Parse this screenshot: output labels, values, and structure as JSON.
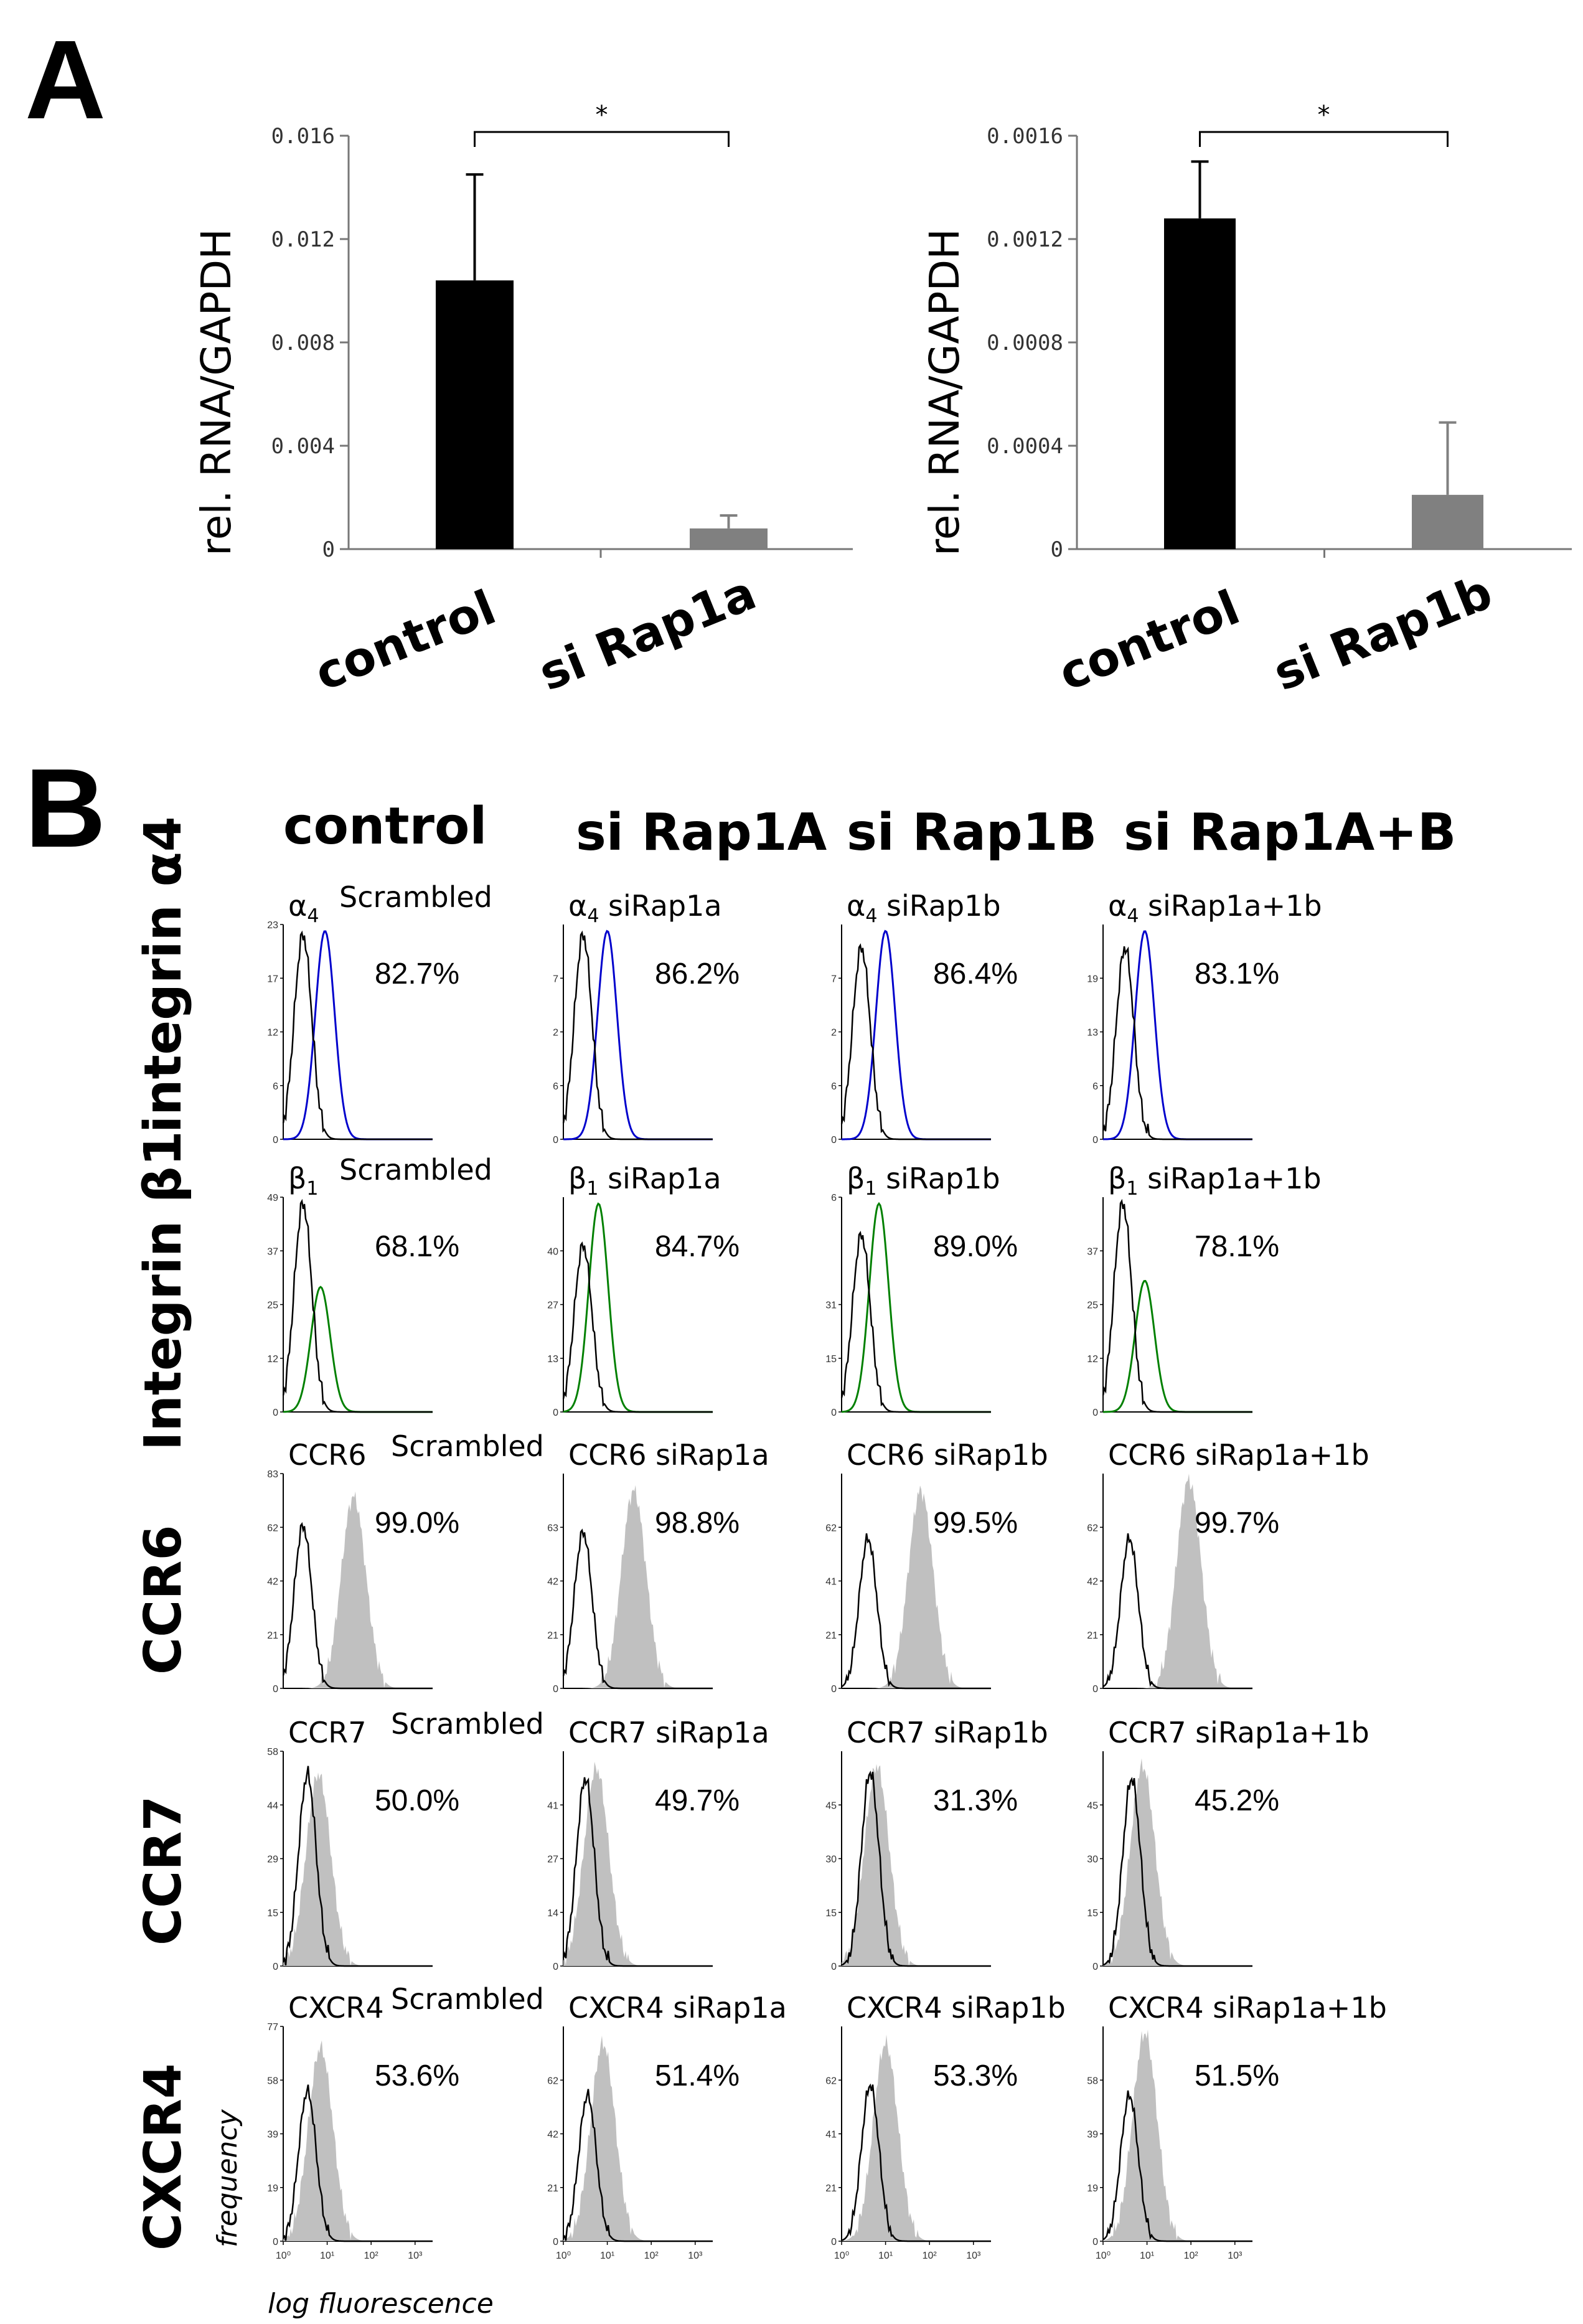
{
  "panel_a": {
    "letter": "A"
  },
  "panel_b": {
    "letter": "B",
    "column_headers": [
      "control",
      "si Rap1A",
      "si Rap1B",
      "si Rap1A+B"
    ],
    "row_headers": [
      "integrin α4",
      "Integrin β1",
      "CCR6",
      "CCR7",
      "CXCR4"
    ],
    "x_axis_label": "log fluorescence",
    "y_axis_label": "frequency"
  },
  "colors": {
    "control_bar": "#000000",
    "si_bar": "#808080",
    "alpha4_positive": "#0000cc",
    "beta1_positive": "#008000",
    "filled_histogram": "#c0c0c0",
    "isotype_line": "#000000"
  },
  "chart_data": [
    {
      "type": "bar",
      "panel": "A",
      "categories": [
        "control",
        "si Rap1a"
      ],
      "values": [
        0.0104,
        0.0008
      ],
      "errors": [
        0.0041,
        0.0005
      ],
      "ylabel": "rel. RNA/GAPDH",
      "ylim": [
        0,
        0.016
      ],
      "yticks": [
        "0",
        "0.004",
        "0.008",
        "0.012",
        "0.016"
      ],
      "significance": "*"
    },
    {
      "type": "bar",
      "panel": "A",
      "categories": [
        "control",
        "si Rap1b"
      ],
      "values": [
        0.00128,
        0.00021
      ],
      "errors": [
        0.00022,
        0.00028
      ],
      "ylabel": "rel. RNA/GAPDH",
      "ylim": [
        0,
        0.0016
      ],
      "yticks": [
        "0",
        "0.0004",
        "0.0008",
        "0.0012",
        "0.0016"
      ],
      "significance": "*"
    },
    {
      "type": "histogram-grid",
      "panel": "B",
      "x_ticks": [
        "10⁰",
        "10¹",
        "10²",
        "10³"
      ],
      "rows": [
        {
          "marker": "integrin α4",
          "style": "outline",
          "color": "#0000cc",
          "cells": [
            {
              "sym": "α",
              "sub": "4",
              "name": "",
              "condition": "Scrambled",
              "percent": "82.7%",
              "yticks": [
                "0",
                "6",
                "12",
                "17",
                "23"
              ],
              "iso_peak_log": 0.45,
              "pos_peak_log": 0.95,
              "pos_height": 1.0,
              "iso_height": 0.98
            },
            {
              "sym": "α",
              "sub": "4",
              "name": "",
              "condition": "siRap1a",
              "percent": "86.2%",
              "yticks": [
                "0",
                "6",
                "2",
                "7",
                ""
              ],
              "iso_peak_log": 0.45,
              "pos_peak_log": 1.0,
              "pos_height": 1.0,
              "iso_height": 0.98
            },
            {
              "sym": "α",
              "sub": "4",
              "name": "",
              "condition": "siRap1b",
              "percent": "86.4%",
              "yticks": [
                "0",
                "6",
                "2",
                "7",
                ""
              ],
              "iso_peak_log": 0.45,
              "pos_peak_log": 1.0,
              "pos_height": 1.0,
              "iso_height": 0.92
            },
            {
              "sym": "α",
              "sub": "4",
              "name": "",
              "condition": "siRap1a+1b",
              "percent": "83.1%",
              "yticks": [
                "0",
                "6",
                "13",
                "19",
                ""
              ],
              "iso_peak_log": 0.5,
              "pos_peak_log": 0.95,
              "pos_height": 1.0,
              "iso_height": 0.92
            }
          ]
        },
        {
          "marker": "Integrin β1",
          "style": "outline",
          "color": "#008000",
          "cells": [
            {
              "sym": "β",
              "sub": "1",
              "name": "",
              "condition": "Scrambled",
              "percent": "68.1%",
              "yticks": [
                "0",
                "12",
                "25",
                "37",
                "49"
              ],
              "iso_peak_log": 0.45,
              "pos_peak_log": 0.85,
              "pos_height": 0.6,
              "iso_height": 1.0
            },
            {
              "sym": "β",
              "sub": "1",
              "name": "",
              "condition": "siRap1a",
              "percent": "84.7%",
              "yticks": [
                "0",
                "13",
                "27",
                "40",
                ""
              ],
              "iso_peak_log": 0.45,
              "pos_peak_log": 0.8,
              "pos_height": 1.0,
              "iso_height": 0.8
            },
            {
              "sym": "β",
              "sub": "1",
              "name": "",
              "condition": "siRap1b",
              "percent": "89.0%",
              "yticks": [
                "0",
                "15",
                "31",
                "",
                "6"
              ],
              "iso_peak_log": 0.45,
              "pos_peak_log": 0.85,
              "pos_height": 1.0,
              "iso_height": 0.85
            },
            {
              "sym": "β",
              "sub": "1",
              "name": "",
              "condition": "siRap1a+1b",
              "percent": "78.1%",
              "yticks": [
                "0",
                "12",
                "25",
                "37",
                ""
              ],
              "iso_peak_log": 0.45,
              "pos_peak_log": 0.95,
              "pos_height": 0.63,
              "iso_height": 1.0
            }
          ]
        },
        {
          "marker": "CCR6",
          "style": "filled",
          "color": "#c0c0c0",
          "cells": [
            {
              "sym": "",
              "sub": "",
              "name": "CCR6",
              "condition": "Scrambled",
              "percent": "99.0%",
              "yticks": [
                "0",
                "21",
                "42",
                "62",
                "83"
              ],
              "iso_peak_log": 0.45,
              "pos_peak_log": 1.6,
              "pos_height": 0.92,
              "iso_height": 0.78
            },
            {
              "sym": "",
              "sub": "",
              "name": "CCR6",
              "condition": "siRap1a",
              "percent": "98.8%",
              "yticks": [
                "0",
                "21",
                "42",
                "63",
                ""
              ],
              "iso_peak_log": 0.45,
              "pos_peak_log": 1.6,
              "pos_height": 0.95,
              "iso_height": 0.75
            },
            {
              "sym": "",
              "sub": "",
              "name": "CCR6",
              "condition": "siRap1b",
              "percent": "99.5%",
              "yticks": [
                "0",
                "21",
                "41",
                "62",
                ""
              ],
              "iso_peak_log": 0.6,
              "pos_peak_log": 1.8,
              "pos_height": 0.95,
              "iso_height": 0.72
            },
            {
              "sym": "",
              "sub": "",
              "name": "CCR6",
              "condition": "siRap1a+1b",
              "percent": "99.7%",
              "yticks": [
                "0",
                "21",
                "42",
                "62",
                ""
              ],
              "iso_peak_log": 0.6,
              "pos_peak_log": 1.95,
              "pos_height": 1.0,
              "iso_height": 0.72
            }
          ]
        },
        {
          "marker": "CCR7",
          "style": "filled",
          "color": "#c0c0c0",
          "cells": [
            {
              "sym": "",
              "sub": "",
              "name": "CCR7",
              "condition": "Scrambled",
              "percent": "50.0%",
              "yticks": [
                "0",
                "15",
                "29",
                "44",
                "58"
              ],
              "iso_peak_log": 0.55,
              "pos_peak_log": 0.8,
              "pos_height": 0.92,
              "iso_height": 0.92
            },
            {
              "sym": "",
              "sub": "",
              "name": "CCR7",
              "condition": "siRap1a",
              "percent": "49.7%",
              "yticks": [
                "0",
                "14",
                "27",
                "41",
                ""
              ],
              "iso_peak_log": 0.5,
              "pos_peak_log": 0.75,
              "pos_height": 0.95,
              "iso_height": 0.9
            },
            {
              "sym": "",
              "sub": "",
              "name": "CCR7",
              "condition": "siRap1b",
              "percent": "31.3%",
              "yticks": [
                "0",
                "15",
                "30",
                "45",
                ""
              ],
              "iso_peak_log": 0.65,
              "pos_peak_log": 0.8,
              "pos_height": 0.96,
              "iso_height": 0.93
            },
            {
              "sym": "",
              "sub": "",
              "name": "CCR7",
              "condition": "siRap1a+1b",
              "percent": "45.2%",
              "yticks": [
                "0",
                "15",
                "30",
                "45",
                ""
              ],
              "iso_peak_log": 0.65,
              "pos_peak_log": 0.9,
              "pos_height": 0.96,
              "iso_height": 0.9
            }
          ]
        },
        {
          "marker": "CXCR4",
          "style": "filled",
          "color": "#c0c0c0",
          "cells": [
            {
              "sym": "",
              "sub": "",
              "name": "CXCR4",
              "condition": "Scrambled",
              "percent": "53.6%",
              "yticks": [
                "0",
                "19",
                "39",
                "58",
                "77"
              ],
              "iso_peak_log": 0.55,
              "pos_peak_log": 0.85,
              "pos_height": 0.93,
              "iso_height": 0.72
            },
            {
              "sym": "",
              "sub": "",
              "name": "CXCR4",
              "condition": "siRap1a",
              "percent": "51.4%",
              "yticks": [
                "0",
                "21",
                "42",
                "62",
                ""
              ],
              "iso_peak_log": 0.55,
              "pos_peak_log": 0.9,
              "pos_height": 0.95,
              "iso_height": 0.7
            },
            {
              "sym": "",
              "sub": "",
              "name": "CXCR4",
              "condition": "siRap1b",
              "percent": "53.3%",
              "yticks": [
                "0",
                "21",
                "41",
                "62",
                ""
              ],
              "iso_peak_log": 0.65,
              "pos_peak_log": 1.0,
              "pos_height": 0.95,
              "iso_height": 0.75
            },
            {
              "sym": "",
              "sub": "",
              "name": "CXCR4",
              "condition": "siRap1a+1b",
              "percent": "51.5%",
              "yticks": [
                "0",
                "19",
                "39",
                "58",
                ""
              ],
              "iso_peak_log": 0.6,
              "pos_peak_log": 0.95,
              "pos_height": 1.0,
              "iso_height": 0.7
            }
          ]
        }
      ]
    }
  ]
}
